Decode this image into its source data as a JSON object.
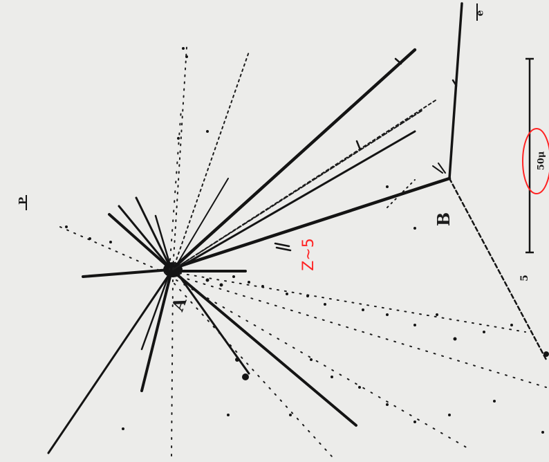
{
  "image": {
    "labels": {
      "vertex_a": "A",
      "vertex_b": "B",
      "primary_beam": "P",
      "track_e": "e",
      "track_5": "5",
      "scale_bar": "50μ",
      "charge_annotation": "Z~5"
    },
    "colors": {
      "background": "#ececea",
      "tracks": "#141414",
      "annotation": "#ff2222"
    }
  }
}
